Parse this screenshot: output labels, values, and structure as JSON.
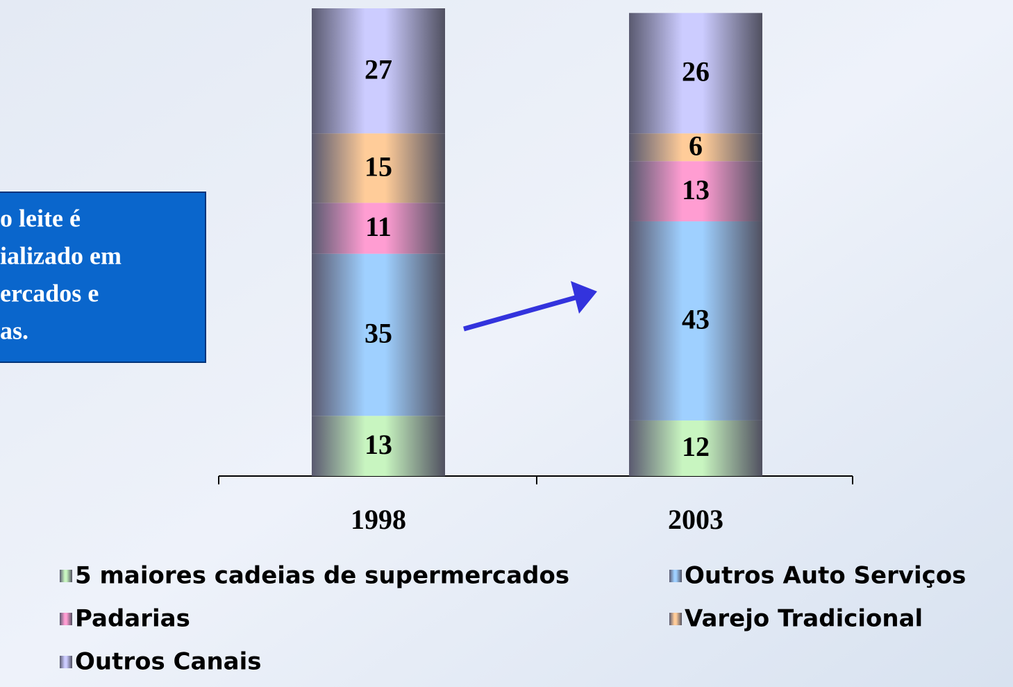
{
  "chart_data": {
    "type": "stacked_bar",
    "categories": [
      "1998",
      "2003"
    ],
    "series": [
      {
        "name": "5 maiores cadeias de supermercados",
        "color": "#c8f5c0",
        "values": [
          13,
          12
        ]
      },
      {
        "name": "Outros Auto Serviços",
        "color": "#9fd0ff",
        "values": [
          35,
          43
        ]
      },
      {
        "name": "Padarias",
        "color": "#ff9dd2",
        "values": [
          11,
          13
        ]
      },
      {
        "name": "Varejo Tradicional",
        "color": "#ffcc99",
        "values": [
          15,
          6
        ]
      },
      {
        "name": "Outros Canais",
        "color": "#ccccff",
        "values": [
          27,
          26
        ]
      }
    ],
    "annotations": [
      "o leite é",
      "ializado em",
      "ercados e",
      "as."
    ]
  }
}
